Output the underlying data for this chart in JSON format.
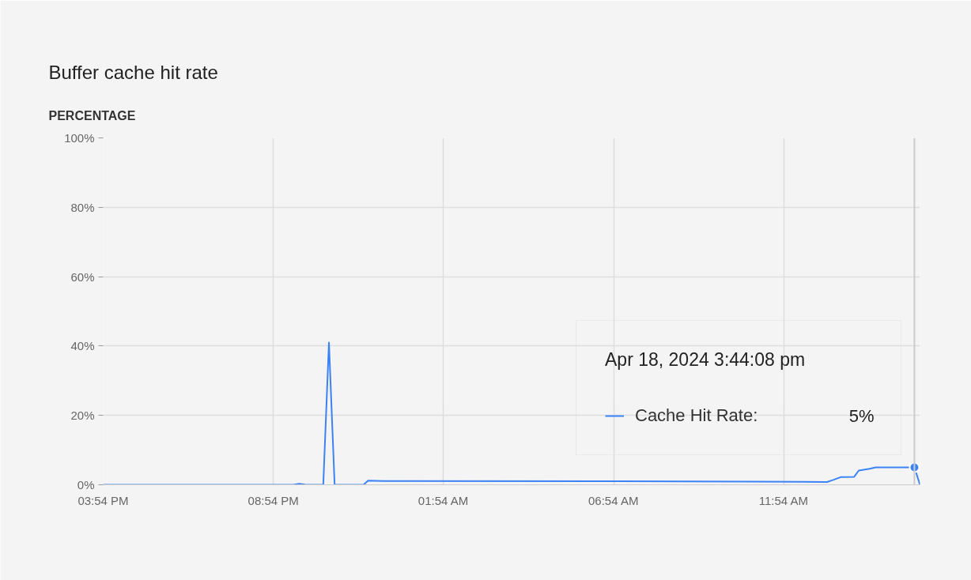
{
  "chart_data": {
    "type": "line",
    "title": "Buffer cache hit rate",
    "ylabel": "PERCENTAGE",
    "x": [
      "2024-04-17T15:54",
      "2024-04-17T21:29",
      "2024-04-17T21:40",
      "2024-04-17T21:51",
      "2024-04-17T22:22",
      "2024-04-17T22:32",
      "2024-04-17T22:42",
      "2024-04-17T23:33",
      "2024-04-17T23:41",
      "2024-04-18T00:08",
      "2024-04-18T07:00",
      "2024-04-18T11:00",
      "2024-04-18T13:10",
      "2024-04-18T13:21",
      "2024-04-18T13:34",
      "2024-04-18T13:58",
      "2024-04-18T14:06",
      "2024-04-18T14:25",
      "2024-04-18T14:36",
      "2024-04-18T15:44:08",
      "2024-04-18T15:54"
    ],
    "series": [
      {
        "name": "Cache Hit Rate:",
        "color": "#3b82f6",
        "values": [
          0,
          0,
          0.3,
          0,
          0,
          41,
          0,
          0,
          1.2,
          1.1,
          1.0,
          0.9,
          0.8,
          1.4,
          2.2,
          2.3,
          4.1,
          4.6,
          5,
          5,
          0
        ]
      }
    ],
    "xlim": [
      "2024-04-17T15:54",
      "2024-04-18T15:54"
    ],
    "xticks": [
      {
        "value": "2024-04-17T15:54",
        "label": "03:54 PM"
      },
      {
        "value": "2024-04-17T20:54",
        "label": "08:54 PM"
      },
      {
        "value": "2024-04-18T01:54",
        "label": "01:54 AM"
      },
      {
        "value": "2024-04-18T06:54",
        "label": "06:54 AM"
      },
      {
        "value": "2024-04-18T11:54",
        "label": "11:54 AM"
      }
    ],
    "ylim": [
      0,
      100
    ],
    "yticks": [
      {
        "value": 0,
        "label": "0%"
      },
      {
        "value": 20,
        "label": "20%"
      },
      {
        "value": 40,
        "label": "40%"
      },
      {
        "value": 60,
        "label": "60%"
      },
      {
        "value": 80,
        "label": "80%"
      },
      {
        "value": 100,
        "label": "100%"
      }
    ],
    "grid": true,
    "marker": "none",
    "line_style": "solid",
    "ref_lines": [
      {
        "axis": "x",
        "value": "2024-04-18T15:44:08",
        "color": "#cccccc"
      }
    ],
    "legend": "right",
    "legend_title": "Apr 18, 2024 3:44:08 pm",
    "annotations": [
      "5%"
    ]
  }
}
